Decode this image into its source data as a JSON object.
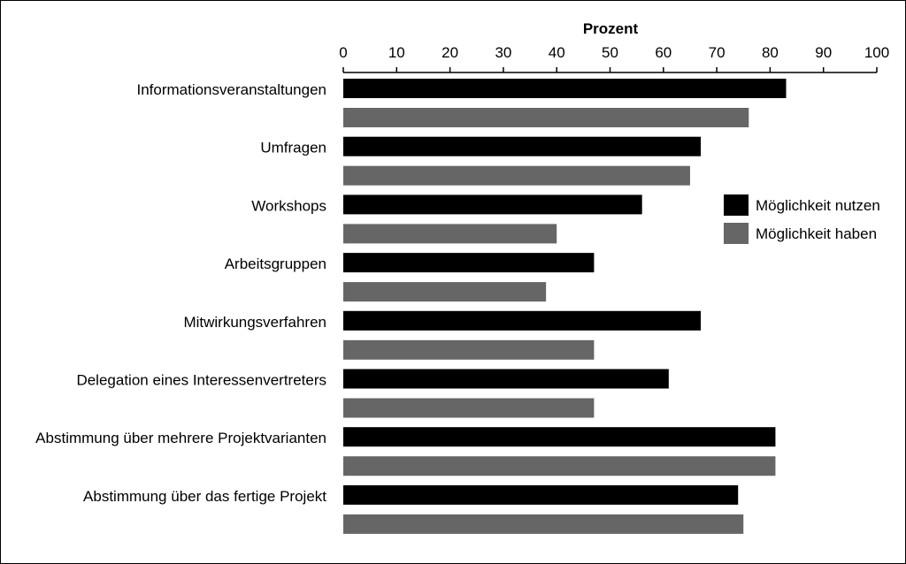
{
  "chart_data": {
    "type": "bar",
    "orientation": "horizontal",
    "xlabel": "Prozent",
    "xlim": [
      0,
      100
    ],
    "ticks": [
      0,
      10,
      20,
      30,
      40,
      50,
      60,
      70,
      80,
      90,
      100
    ],
    "grid": false,
    "legend_position": "right",
    "categories": [
      "Informationsveranstaltungen",
      "Umfragen",
      "Workshops",
      "Arbeitsgruppen",
      "Mitwirkungsverfahren",
      "Delegation eines Interessenvertreters",
      "Abstimmung über mehrere Projektvarianten",
      "Abstimmung über das fertige Projekt"
    ],
    "series": [
      {
        "name": "Möglichkeit nutzen",
        "color": "#000000",
        "values": [
          83,
          67,
          56,
          47,
          67,
          61,
          81,
          74
        ]
      },
      {
        "name": "Möglichkeit haben",
        "color": "#666666",
        "values": [
          76,
          65,
          40,
          38,
          47,
          47,
          81,
          75
        ]
      }
    ]
  }
}
